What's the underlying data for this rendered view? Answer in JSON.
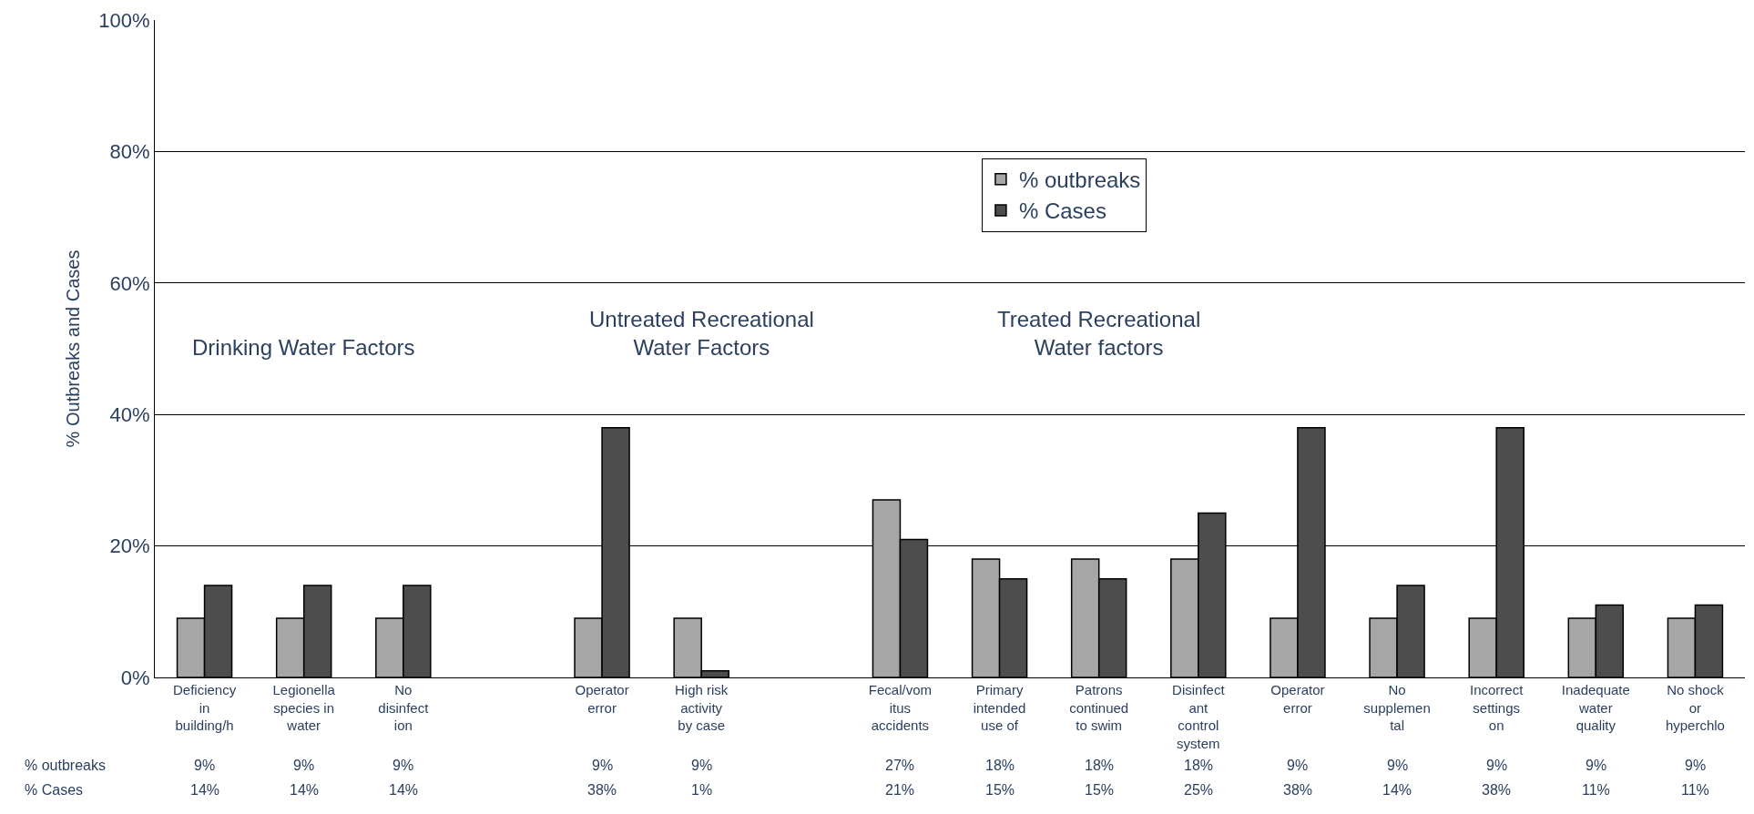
{
  "chart_data": {
    "type": "bar",
    "ylabel": "% Outbreaks and Cases",
    "categories": [
      "Deficiency in building/h",
      "Legionella species in water",
      "No disinfection",
      null,
      "Operator error",
      "High risk activity by case",
      null,
      "Fecal/vomitus accidents",
      "Primary intended use of",
      "Patrons continued to swim",
      "Disinfectant control system",
      "Operator error",
      "No supplemental",
      "Incorrect settings on",
      "Inadequate water quality",
      "No shock or hyperchlo"
    ],
    "series": [
      {
        "name": "% outbreaks",
        "color": "#a6a6a6",
        "values": [
          9,
          9,
          9,
          null,
          9,
          9,
          null,
          27,
          18,
          18,
          18,
          9,
          9,
          9,
          9,
          9
        ],
        "value_labels": [
          "9%",
          "9%",
          "9%",
          null,
          "9%",
          "9%",
          null,
          "27%",
          "18%",
          "18%",
          "18%",
          "9%",
          "9%",
          "9%",
          "9%",
          "9%"
        ]
      },
      {
        "name": "% Cases",
        "color": "#4d4d4d",
        "values": [
          14,
          14,
          14,
          null,
          38,
          1,
          null,
          21,
          15,
          15,
          25,
          38,
          14,
          38,
          11,
          11
        ],
        "value_labels": [
          "14%",
          "14%",
          "14%",
          null,
          "38%",
          "1%",
          null,
          "21%",
          "15%",
          "15%",
          "25%",
          "38%",
          "14%",
          "38%",
          "11%",
          "11%"
        ]
      }
    ],
    "ylim": [
      0,
      100
    ],
    "yticks": [
      {
        "value": 0,
        "label": "0%"
      },
      {
        "value": 20,
        "label": "20%"
      },
      {
        "value": 40,
        "label": "40%"
      },
      {
        "value": 60,
        "label": "60%"
      },
      {
        "value": 80,
        "label": "80%"
      },
      {
        "value": 100,
        "label": "100%"
      }
    ],
    "grid": "y",
    "legend": "top",
    "annotations": [
      "Drinking Water Factors",
      "Untreated Recreational $^{}$Water Factors",
      "Treated Recreational Water factors"
    ]
  }
}
